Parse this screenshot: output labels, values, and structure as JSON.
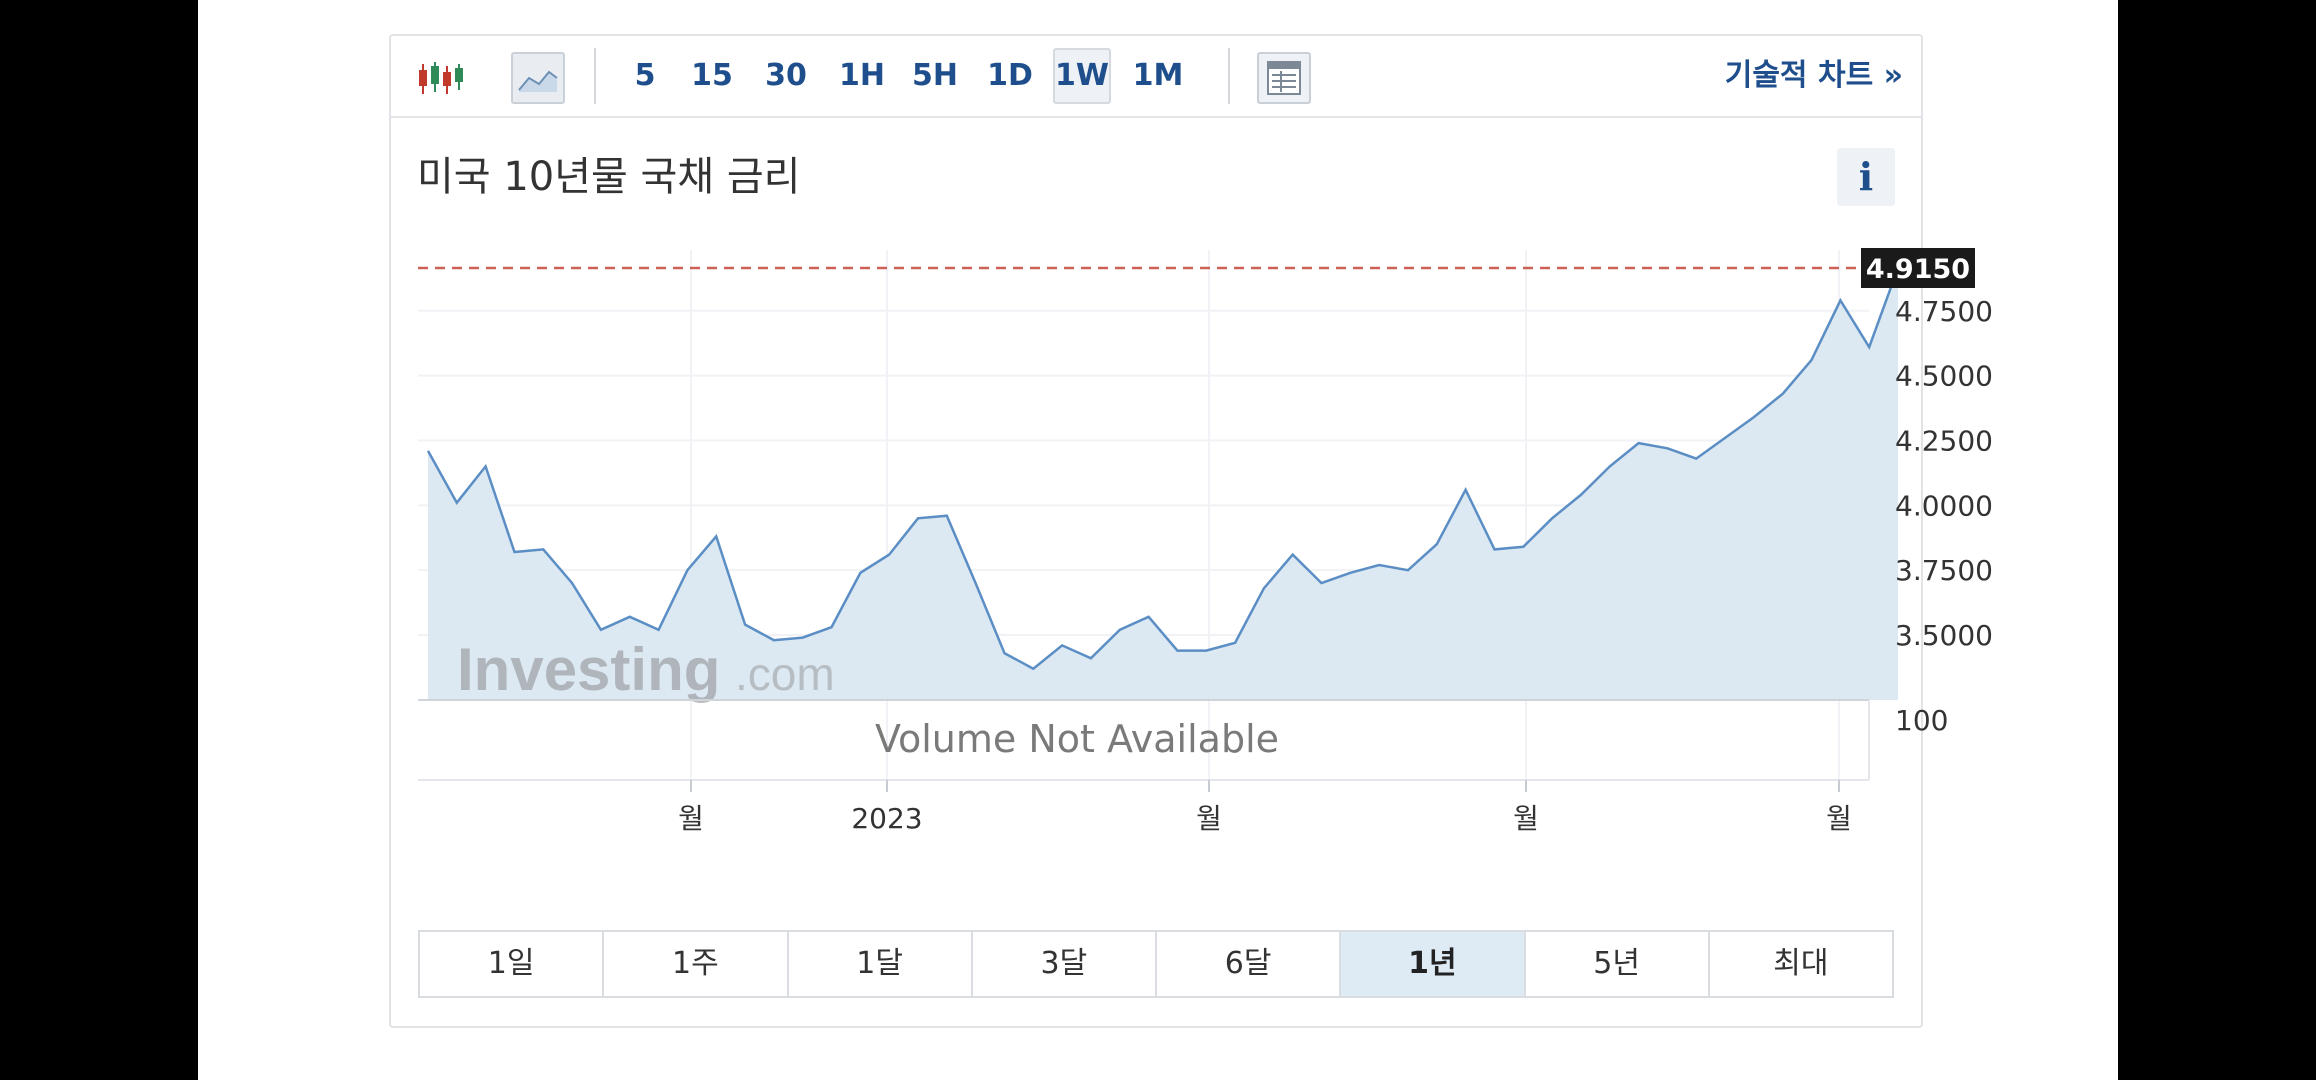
{
  "toolbar": {
    "icons": [
      "candlestick-chart-icon",
      "area-chart-icon",
      "table-view-icon"
    ],
    "timeframes": [
      "5",
      "15",
      "30",
      "1H",
      "5H",
      "1D",
      "1W",
      "1M"
    ],
    "active_timeframe": "1W",
    "tech_link": "기술적 차트 »"
  },
  "title": "미국 10년물 국채 금리",
  "info_label": "i",
  "watermark": {
    "brand": "Investing",
    "suffix": ".com"
  },
  "volume_text": "Volume Not Available",
  "volume_axis_label": "100",
  "colors": {
    "line": "#5b8ec4",
    "fill": "#dce9f3",
    "price_tag": "#1a1a1a",
    "dashed_line": "#c0392b",
    "accent": "#1f4e8c"
  },
  "chart_data": {
    "type": "area",
    "y_ticks": [
      "4.7500",
      "4.5000",
      "4.2500",
      "4.0000",
      "3.7500",
      "3.5000"
    ],
    "ylim": [
      3.27,
      4.99
    ],
    "x_tick_labels": [
      "월",
      "2023",
      "월",
      "월",
      "월"
    ],
    "last_price": "4.9150",
    "grid": true,
    "values": [
      4.21,
      4.01,
      4.15,
      3.82,
      3.83,
      3.7,
      3.52,
      3.57,
      3.52,
      3.75,
      3.88,
      3.54,
      3.48,
      3.49,
      3.53,
      3.74,
      3.81,
      3.95,
      3.96,
      3.7,
      3.43,
      3.37,
      3.46,
      3.41,
      3.52,
      3.57,
      3.44,
      3.44,
      3.47,
      3.68,
      3.81,
      3.7,
      3.74,
      3.77,
      3.75,
      3.85,
      4.06,
      3.83,
      3.84,
      3.95,
      4.04,
      4.15,
      4.24,
      4.22,
      4.18,
      4.26,
      4.34,
      4.43,
      4.56,
      4.79,
      4.61,
      4.915
    ]
  },
  "range_buttons": [
    "1일",
    "1주",
    "1달",
    "3달",
    "6달",
    "1년",
    "5년",
    "최대"
  ],
  "active_range": "1년"
}
